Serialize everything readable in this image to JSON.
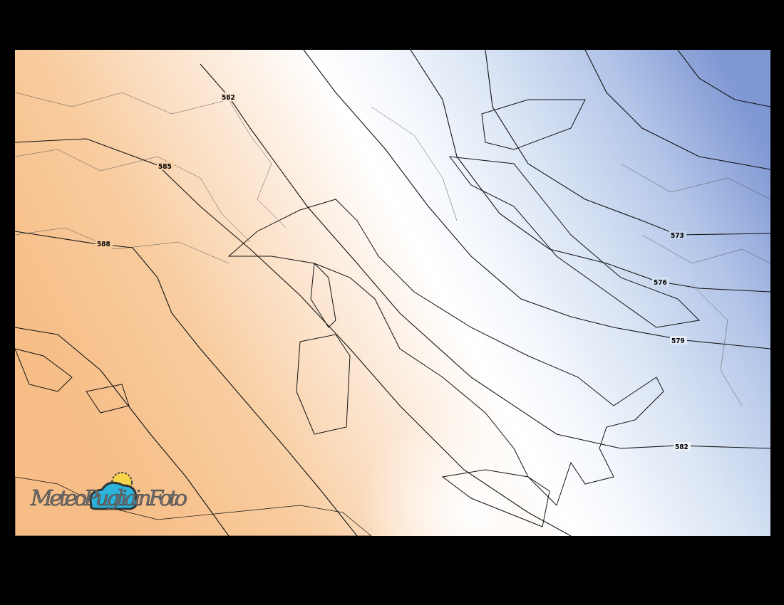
{
  "map": {
    "contours": [
      {
        "value": "582",
        "label": "582"
      },
      {
        "value": "585",
        "label": "585"
      },
      {
        "value": "588",
        "label": "588"
      },
      {
        "value": "573",
        "label": "573"
      },
      {
        "value": "576",
        "label": "576"
      },
      {
        "value": "579",
        "label": "579"
      },
      {
        "value": "582",
        "label": "582"
      }
    ],
    "colors": {
      "warm_strong": "#f6bd86",
      "warm_light": "#fdeee0",
      "neutral": "#ffffff",
      "cool_light": "#e9f0f9",
      "cool_strong": "#7f97d3",
      "frame": "#000000"
    }
  },
  "logo": {
    "text": "MeteoPugliainFoto"
  }
}
